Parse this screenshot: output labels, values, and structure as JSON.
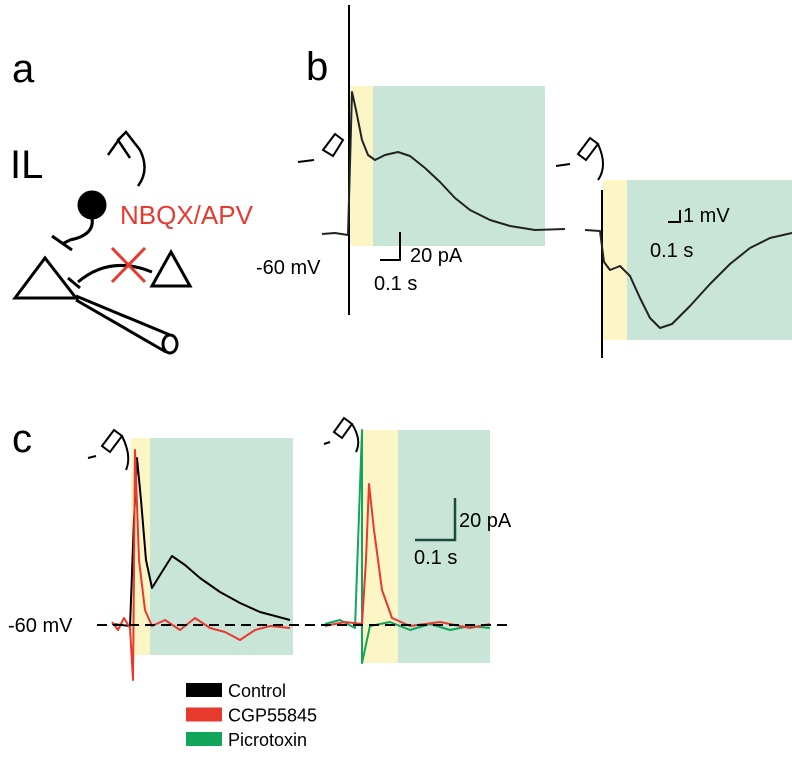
{
  "panel_a": {
    "label": "a",
    "region": "IL",
    "drug": "NBQX/APV"
  },
  "panel_b": {
    "label": "b",
    "holding": "-60 mV",
    "current_scale": "20 pA",
    "current_time": "0.1 s",
    "voltage_scale": "1 mV",
    "voltage_time": "0.1 s"
  },
  "panel_c": {
    "label": "c",
    "holding": "-60 mV",
    "current_scale": "20 pA",
    "current_time": "0.1 s"
  },
  "legend": [
    {
      "name": "Control",
      "color": "#000000"
    },
    {
      "name": "CGP55845",
      "color": "#e8392f"
    },
    {
      "name": "Picrotoxin",
      "color": "#13a55a"
    }
  ]
}
